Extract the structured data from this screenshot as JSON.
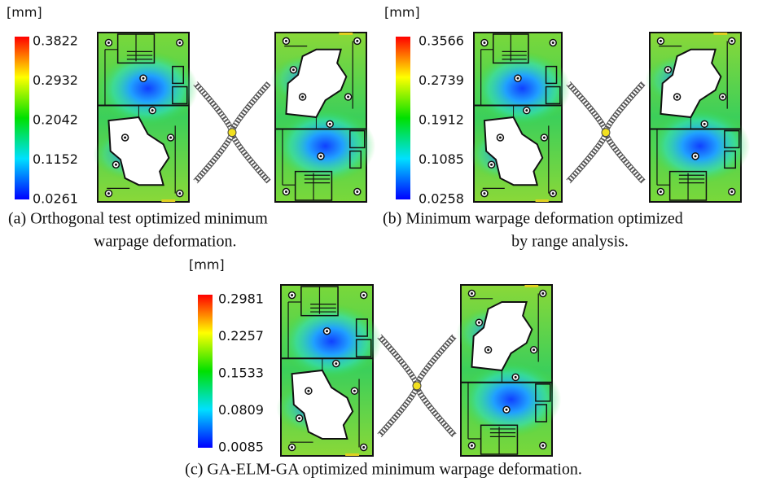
{
  "panels": [
    {
      "unit": "[mm]",
      "scale": [
        "0.3822",
        "0.2932",
        "0.2042",
        "0.1152",
        "0.0261"
      ],
      "caption": [
        "(a)  Orthogonal test optimized minimum",
        "warpage deformation."
      ]
    },
    {
      "unit": "[mm]",
      "scale": [
        "0.3566",
        "0.2739",
        "0.1912",
        "0.1085",
        "0.0258"
      ],
      "caption": [
        "(b)  Minimum warpage deformation optimized",
        "by range analysis."
      ]
    },
    {
      "unit": "[mm]",
      "scale": [
        "0.2981",
        "0.2257",
        "0.1533",
        "0.0809",
        "0.0085"
      ],
      "caption": [
        "(c)  GA-ELM-GA optimized minimum warpage deformation."
      ]
    }
  ]
}
